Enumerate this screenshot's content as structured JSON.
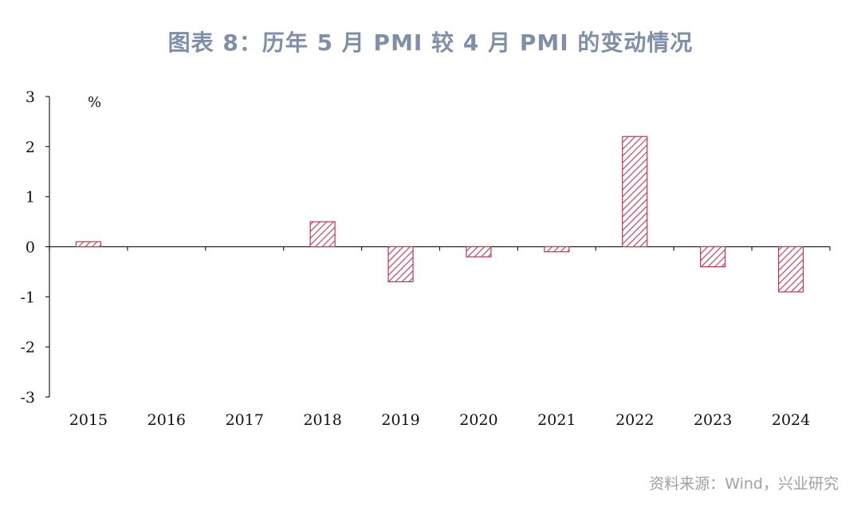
{
  "title": "图表 8：历年 5 月 PMI 较 4 月 PMI 的变动情况",
  "source": "资料来源：Wind，兴业研究",
  "colors": {
    "bar": "#c8324a",
    "title": "#7f8fa9",
    "source": "#a0a0a0"
  },
  "chart_data": {
    "type": "bar",
    "categories": [
      "2015",
      "2016",
      "2017",
      "2018",
      "2019",
      "2020",
      "2021",
      "2022",
      "2023",
      "2024"
    ],
    "values": [
      0.1,
      0.0,
      0.0,
      0.5,
      -0.7,
      -0.2,
      -0.1,
      2.2,
      -0.4,
      -0.9
    ],
    "unit": "%",
    "ylim": [
      -3,
      3
    ],
    "yticks": [
      "3",
      "2",
      "1",
      "0",
      "-1",
      "-2",
      "-3"
    ],
    "fill": "diagonal-hatch",
    "grid": false,
    "legend": "none"
  }
}
